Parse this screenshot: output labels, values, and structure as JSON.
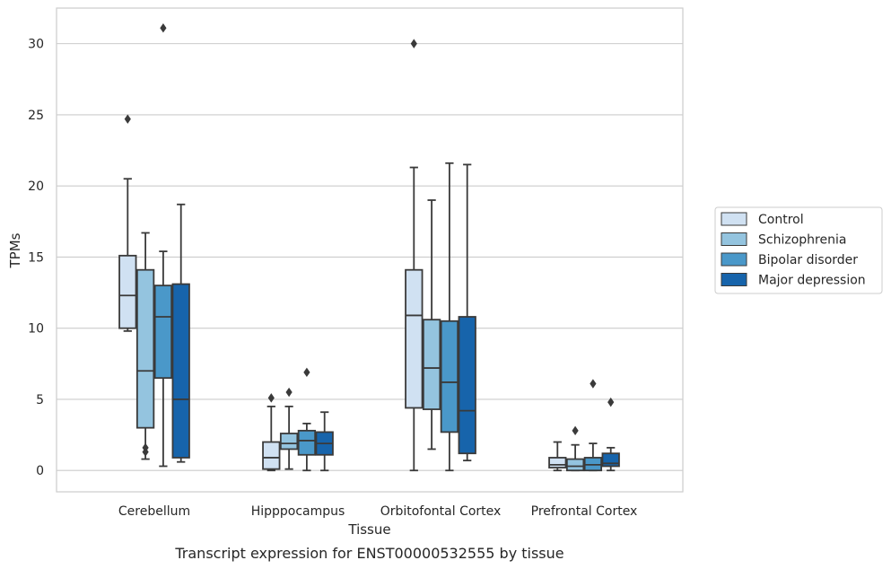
{
  "chart_data": {
    "type": "box",
    "title": "Transcript expression for ENST00000532555 by tissue",
    "xlabel": "Tissue",
    "ylabel": "TPMs",
    "ylim": [
      -1.5,
      32.5
    ],
    "yticks": [
      0,
      5,
      10,
      15,
      20,
      25,
      30
    ],
    "grid": true,
    "legend_position": "right",
    "categories": [
      "Cerebellum",
      "Hipppocampus",
      "Orbitofontal Cortex",
      "Prefrontal Cortex"
    ],
    "series": [
      {
        "name": "Control",
        "color": "#d0e1f2",
        "boxes": [
          {
            "whisker_low": 9.8,
            "q1": 10.0,
            "median": 12.3,
            "q3": 15.1,
            "whisker_high": 20.5,
            "outliers": [
              24.7
            ]
          },
          {
            "whisker_low": 0.0,
            "q1": 0.1,
            "median": 0.9,
            "q3": 2.0,
            "whisker_high": 4.5,
            "outliers": [
              5.1
            ]
          },
          {
            "whisker_low": 0.0,
            "q1": 4.4,
            "median": 10.9,
            "q3": 14.1,
            "whisker_high": 21.3,
            "outliers": [
              30.0
            ]
          },
          {
            "whisker_low": 0.0,
            "q1": 0.2,
            "median": 0.4,
            "q3": 0.9,
            "whisker_high": 2.0,
            "outliers": []
          }
        ]
      },
      {
        "name": "Schizophrenia",
        "color": "#94c4df",
        "boxes": [
          {
            "whisker_low": 0.8,
            "q1": 3.0,
            "median": 7.0,
            "q3": 14.1,
            "whisker_high": 16.7,
            "outliers": [
              1.3,
              1.6
            ]
          },
          {
            "whisker_low": 0.1,
            "q1": 1.5,
            "median": 1.9,
            "q3": 2.6,
            "whisker_high": 4.5,
            "outliers": [
              5.5
            ]
          },
          {
            "whisker_low": 1.5,
            "q1": 4.3,
            "median": 7.2,
            "q3": 10.6,
            "whisker_high": 19.0,
            "outliers": []
          },
          {
            "whisker_low": 0.0,
            "q1": 0.0,
            "median": 0.3,
            "q3": 0.8,
            "whisker_high": 1.8,
            "outliers": [
              2.8
            ]
          }
        ]
      },
      {
        "name": "Bipolar disorder",
        "color": "#4a98c9",
        "boxes": [
          {
            "whisker_low": 0.3,
            "q1": 6.5,
            "median": 10.8,
            "q3": 13.0,
            "whisker_high": 15.4,
            "outliers": [
              31.1
            ]
          },
          {
            "whisker_low": 0.0,
            "q1": 1.1,
            "median": 2.1,
            "q3": 2.8,
            "whisker_high": 3.3,
            "outliers": [
              6.9
            ]
          },
          {
            "whisker_low": 0.0,
            "q1": 2.7,
            "median": 6.2,
            "q3": 10.5,
            "whisker_high": 21.6,
            "outliers": []
          },
          {
            "whisker_low": 0.0,
            "q1": 0.0,
            "median": 0.4,
            "q3": 0.9,
            "whisker_high": 1.9,
            "outliers": [
              6.1
            ]
          }
        ]
      },
      {
        "name": "Major depression",
        "color": "#1764ab",
        "boxes": [
          {
            "whisker_low": 0.6,
            "q1": 0.9,
            "median": 5.0,
            "q3": 13.1,
            "whisker_high": 18.7,
            "outliers": []
          },
          {
            "whisker_low": 0.0,
            "q1": 1.1,
            "median": 1.9,
            "q3": 2.7,
            "whisker_high": 4.1,
            "outliers": []
          },
          {
            "whisker_low": 0.7,
            "q1": 1.2,
            "median": 4.2,
            "q3": 10.8,
            "whisker_high": 21.5,
            "outliers": []
          },
          {
            "whisker_low": 0.0,
            "q1": 0.3,
            "median": 0.5,
            "q3": 1.2,
            "whisker_high": 1.6,
            "outliers": [
              4.8
            ]
          }
        ]
      }
    ]
  },
  "colors": {
    "line": "#3a3a3a",
    "grid": "#cccccc",
    "frame": "#cccccc"
  }
}
